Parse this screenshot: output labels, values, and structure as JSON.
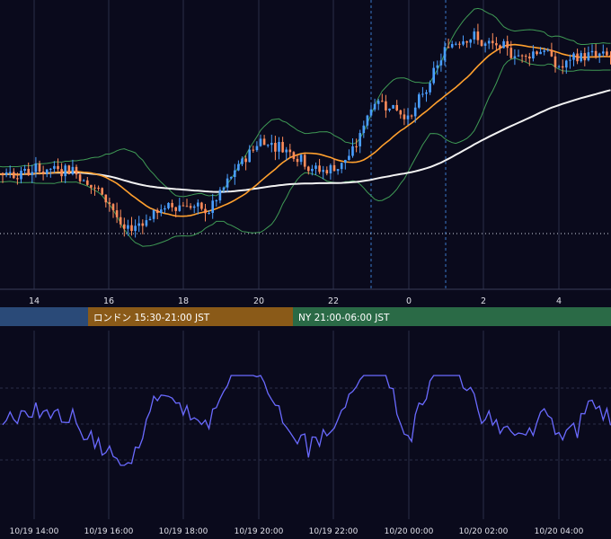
{
  "colors": {
    "background": "#0a0a1c",
    "grid": "#2b2e48",
    "candle_up": "#4a9eff",
    "candle_down": "#ff8c5a",
    "ma_fast": "#ffa02e",
    "ma_slow": "#f2f2f2",
    "bollinger": "#3f9a55",
    "oscillator": "#6a6aff",
    "session_tokyo": "#2a4a78",
    "session_london": "#8a5a18",
    "session_ny": "#2a6a46",
    "ref_line": "#cfd4e0",
    "session_marker": "#3a78c8"
  },
  "sessions": [
    {
      "name": "tokyo",
      "label": "",
      "color": "#2a4a78",
      "start": 0,
      "end": 98
    },
    {
      "name": "london",
      "label": "ロンドン 15:30-21:00 JST",
      "color": "#8a5a18",
      "start": 98,
      "end": 326
    },
    {
      "name": "newyork",
      "label": "NY 21:00-06:00 JST",
      "color": "#2a6a46",
      "start": 326,
      "end": 680
    }
  ],
  "chart_data": [
    {
      "type": "candlestick",
      "title": "",
      "x_ticks": [
        "14",
        "16",
        "18",
        "20",
        "22",
        "0",
        "2",
        "4"
      ],
      "overlays": [
        "moving average (fast)",
        "moving average (slow)",
        "bollinger bands"
      ],
      "reference_line": "horizontal dotted",
      "session_markers": [
        "vertical dashed",
        "vertical dashed"
      ],
      "series_trend": [
        {
          "x": "13:30",
          "close": 0.42
        },
        {
          "x": "15:00",
          "close": 0.44
        },
        {
          "x": "15:30",
          "close": 0.36
        },
        {
          "x": "16:00",
          "close": 0.3
        },
        {
          "x": "16:20",
          "close": 0.16
        },
        {
          "x": "17:00",
          "close": 0.24
        },
        {
          "x": "18:00",
          "close": 0.3
        },
        {
          "x": "18:30",
          "close": 0.24
        },
        {
          "x": "19:00",
          "close": 0.34
        },
        {
          "x": "19:30",
          "close": 0.46
        },
        {
          "x": "20:00",
          "close": 0.56
        },
        {
          "x": "21:00",
          "close": 0.5
        },
        {
          "x": "21:30",
          "close": 0.42
        },
        {
          "x": "22:00",
          "close": 0.44
        },
        {
          "x": "22:30",
          "close": 0.5
        },
        {
          "x": "23:00",
          "close": 0.72
        },
        {
          "x": "23:30",
          "close": 0.7
        },
        {
          "x": "00:00",
          "close": 0.64
        },
        {
          "x": "00:30",
          "close": 0.78
        },
        {
          "x": "01:00",
          "close": 0.94
        },
        {
          "x": "01:30",
          "close": 1.0
        },
        {
          "x": "02:00",
          "close": 0.94
        },
        {
          "x": "03:00",
          "close": 0.9
        },
        {
          "x": "03:30",
          "close": 0.94
        },
        {
          "x": "04:00",
          "close": 0.84
        },
        {
          "x": "04:30",
          "close": 0.9
        }
      ]
    },
    {
      "type": "line",
      "title": "",
      "x_ticks": [
        "10/19 14:00",
        "10/19 16:00",
        "10/19 18:00",
        "10/19 20:00",
        "10/19 22:00",
        "10/20 00:00",
        "10/20 02:00",
        "10/20 04:00"
      ],
      "gridlines": "horizontal dashed"
    }
  ]
}
